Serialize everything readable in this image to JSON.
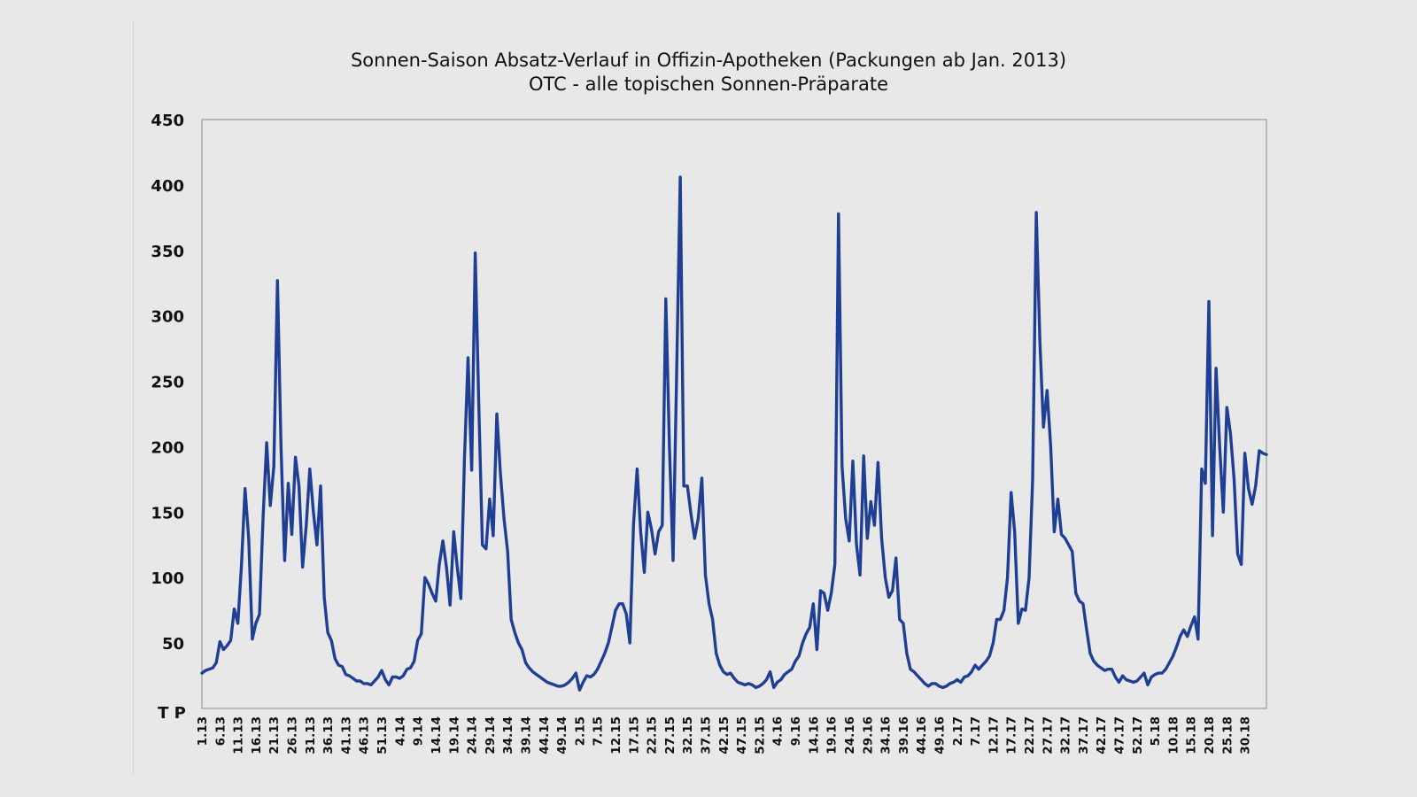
{
  "chart_data": {
    "type": "line",
    "title": "Sonnen-Saison Absatz-Verlauf in Offizin-Apotheken (Packungen ab Jan. 2013)",
    "subtitle": "OTC - alle topischen Sonnen-Präparate",
    "ylabel": "T P",
    "ylim": [
      0,
      450
    ],
    "yticks": [
      "50",
      "100",
      "150",
      "200",
      "250",
      "300",
      "350",
      "400",
      "450"
    ],
    "grid": false,
    "xticks": [
      "1.13",
      "6.13",
      "11.13",
      "16.13",
      "21.13",
      "26.13",
      "31.13",
      "36.13",
      "41.13",
      "46.13",
      "51.13",
      "4.14",
      "9.14",
      "14.14",
      "19.14",
      "24.14",
      "29.14",
      "34.14",
      "39.14",
      "44.14",
      "49.14",
      "2.15",
      "7.15",
      "12.15",
      "17.15",
      "22.15",
      "27.15",
      "32.15",
      "37.15",
      "42.15",
      "47.15",
      "52.15",
      "4.16",
      "9.16",
      "14.16",
      "19.16",
      "24.16",
      "29.16",
      "34.16",
      "39.16",
      "44.16",
      "49.16",
      "2.17",
      "7.17",
      "12.17",
      "17.17",
      "22.17",
      "27.17",
      "32.17",
      "37.17",
      "42.17",
      "47.17",
      "52.17",
      "5.18",
      "10.18",
      "15.18",
      "20.18",
      "25.18",
      "30.18"
    ],
    "series": [
      {
        "color": "#1f3f94",
        "points": [
          [
            0,
            27
          ],
          [
            1,
            29
          ],
          [
            2,
            30
          ],
          [
            3,
            31
          ],
          [
            4,
            35
          ],
          [
            5,
            51
          ],
          [
            6,
            45
          ],
          [
            7,
            48
          ],
          [
            8,
            52
          ],
          [
            9,
            76
          ],
          [
            10,
            65
          ],
          [
            11,
            110
          ],
          [
            12,
            168
          ],
          [
            13,
            130
          ],
          [
            14,
            53
          ],
          [
            15,
            65
          ],
          [
            16,
            72
          ],
          [
            17,
            145
          ],
          [
            18,
            203
          ],
          [
            19,
            155
          ],
          [
            20,
            185
          ],
          [
            21,
            327
          ],
          [
            22,
            200
          ],
          [
            23,
            113
          ],
          [
            24,
            172
          ],
          [
            25,
            133
          ],
          [
            26,
            192
          ],
          [
            27,
            170
          ],
          [
            28,
            108
          ],
          [
            29,
            140
          ],
          [
            30,
            183
          ],
          [
            31,
            150
          ],
          [
            32,
            125
          ],
          [
            33,
            170
          ],
          [
            34,
            85
          ],
          [
            35,
            58
          ],
          [
            36,
            52
          ],
          [
            37,
            38
          ],
          [
            38,
            33
          ],
          [
            39,
            32
          ],
          [
            40,
            26
          ],
          [
            41,
            25
          ],
          [
            42,
            23
          ],
          [
            43,
            21
          ],
          [
            44,
            21
          ],
          [
            45,
            19
          ],
          [
            46,
            19
          ],
          [
            47,
            18
          ],
          [
            48,
            21
          ],
          [
            49,
            24
          ],
          [
            50,
            29
          ],
          [
            51,
            22
          ],
          [
            52,
            18
          ],
          [
            53,
            24
          ],
          [
            54,
            24
          ],
          [
            55,
            23
          ],
          [
            56,
            25
          ],
          [
            57,
            30
          ],
          [
            58,
            31
          ],
          [
            59,
            36
          ],
          [
            60,
            52
          ],
          [
            61,
            57
          ],
          [
            62,
            100
          ],
          [
            63,
            95
          ],
          [
            64,
            88
          ],
          [
            65,
            82
          ],
          [
            66,
            110
          ],
          [
            67,
            128
          ],
          [
            68,
            108
          ],
          [
            69,
            79
          ],
          [
            70,
            135
          ],
          [
            71,
            108
          ],
          [
            72,
            84
          ],
          [
            73,
            190
          ],
          [
            74,
            268
          ],
          [
            75,
            182
          ],
          [
            76,
            348
          ],
          [
            77,
            230
          ],
          [
            78,
            125
          ],
          [
            79,
            122
          ],
          [
            80,
            160
          ],
          [
            81,
            132
          ],
          [
            82,
            225
          ],
          [
            83,
            180
          ],
          [
            84,
            145
          ],
          [
            85,
            120
          ],
          [
            86,
            68
          ],
          [
            87,
            58
          ],
          [
            88,
            50
          ],
          [
            89,
            45
          ],
          [
            90,
            35
          ],
          [
            91,
            31
          ],
          [
            92,
            28
          ],
          [
            93,
            26
          ],
          [
            94,
            24
          ],
          [
            95,
            22
          ],
          [
            96,
            20
          ],
          [
            97,
            19
          ],
          [
            98,
            18
          ],
          [
            99,
            17
          ],
          [
            100,
            17
          ],
          [
            101,
            18
          ],
          [
            102,
            20
          ],
          [
            103,
            23
          ],
          [
            104,
            27
          ],
          [
            105,
            14
          ],
          [
            106,
            20
          ],
          [
            107,
            25
          ],
          [
            108,
            24
          ],
          [
            109,
            26
          ],
          [
            110,
            30
          ],
          [
            111,
            36
          ],
          [
            112,
            42
          ],
          [
            113,
            50
          ],
          [
            114,
            62
          ],
          [
            115,
            75
          ],
          [
            116,
            80
          ],
          [
            117,
            80
          ],
          [
            118,
            72
          ],
          [
            119,
            50
          ],
          [
            120,
            140
          ],
          [
            121,
            183
          ],
          [
            122,
            135
          ],
          [
            123,
            104
          ],
          [
            124,
            150
          ],
          [
            125,
            137
          ],
          [
            126,
            118
          ],
          [
            127,
            135
          ],
          [
            128,
            140
          ],
          [
            129,
            313
          ],
          [
            130,
            200
          ],
          [
            131,
            113
          ],
          [
            132,
            255
          ],
          [
            133,
            406
          ],
          [
            134,
            170
          ],
          [
            135,
            170
          ],
          [
            136,
            148
          ],
          [
            137,
            130
          ],
          [
            138,
            145
          ],
          [
            139,
            176
          ],
          [
            140,
            102
          ],
          [
            141,
            80
          ],
          [
            142,
            68
          ],
          [
            143,
            42
          ],
          [
            144,
            33
          ],
          [
            145,
            28
          ],
          [
            146,
            26
          ],
          [
            147,
            27
          ],
          [
            148,
            23
          ],
          [
            149,
            20
          ],
          [
            150,
            19
          ],
          [
            151,
            18
          ],
          [
            152,
            19
          ],
          [
            153,
            18
          ],
          [
            154,
            16
          ],
          [
            155,
            17
          ],
          [
            156,
            19
          ],
          [
            157,
            22
          ],
          [
            158,
            28
          ],
          [
            159,
            16
          ],
          [
            160,
            20
          ],
          [
            161,
            22
          ],
          [
            162,
            26
          ],
          [
            163,
            28
          ],
          [
            164,
            30
          ],
          [
            165,
            36
          ],
          [
            166,
            40
          ],
          [
            167,
            50
          ],
          [
            168,
            57
          ],
          [
            169,
            62
          ],
          [
            170,
            80
          ],
          [
            171,
            45
          ],
          [
            172,
            90
          ],
          [
            173,
            88
          ],
          [
            174,
            75
          ],
          [
            175,
            88
          ],
          [
            176,
            110
          ],
          [
            177,
            378
          ],
          [
            178,
            185
          ],
          [
            179,
            145
          ],
          [
            180,
            128
          ],
          [
            181,
            189
          ],
          [
            182,
            125
          ],
          [
            183,
            102
          ],
          [
            184,
            193
          ],
          [
            185,
            130
          ],
          [
            186,
            158
          ],
          [
            187,
            140
          ],
          [
            188,
            188
          ],
          [
            189,
            130
          ],
          [
            190,
            100
          ],
          [
            191,
            85
          ],
          [
            192,
            90
          ],
          [
            193,
            115
          ],
          [
            194,
            68
          ],
          [
            195,
            65
          ],
          [
            196,
            42
          ],
          [
            197,
            30
          ],
          [
            198,
            28
          ],
          [
            199,
            25
          ],
          [
            200,
            22
          ],
          [
            201,
            19
          ],
          [
            202,
            17
          ],
          [
            203,
            19
          ],
          [
            204,
            19
          ],
          [
            205,
            17
          ],
          [
            206,
            16
          ],
          [
            207,
            17
          ],
          [
            208,
            19
          ],
          [
            209,
            20
          ],
          [
            210,
            22
          ],
          [
            211,
            20
          ],
          [
            212,
            24
          ],
          [
            213,
            25
          ],
          [
            214,
            28
          ],
          [
            215,
            33
          ],
          [
            216,
            30
          ],
          [
            217,
            33
          ],
          [
            218,
            36
          ],
          [
            219,
            40
          ],
          [
            220,
            50
          ],
          [
            221,
            68
          ],
          [
            222,
            68
          ],
          [
            223,
            75
          ],
          [
            224,
            100
          ],
          [
            225,
            165
          ],
          [
            226,
            135
          ],
          [
            227,
            65
          ],
          [
            228,
            76
          ],
          [
            229,
            75
          ],
          [
            230,
            100
          ],
          [
            231,
            175
          ],
          [
            232,
            379
          ],
          [
            233,
            280
          ],
          [
            234,
            215
          ],
          [
            235,
            243
          ],
          [
            236,
            200
          ],
          [
            237,
            135
          ],
          [
            238,
            160
          ],
          [
            239,
            133
          ],
          [
            240,
            130
          ],
          [
            241,
            125
          ],
          [
            242,
            120
          ],
          [
            243,
            88
          ],
          [
            244,
            82
          ],
          [
            245,
            80
          ],
          [
            246,
            60
          ],
          [
            247,
            42
          ],
          [
            248,
            36
          ],
          [
            249,
            33
          ],
          [
            250,
            31
          ],
          [
            251,
            29
          ],
          [
            252,
            30
          ],
          [
            253,
            30
          ],
          [
            254,
            24
          ],
          [
            255,
            20
          ],
          [
            256,
            25
          ],
          [
            257,
            22
          ],
          [
            258,
            21
          ],
          [
            259,
            20
          ],
          [
            260,
            21
          ],
          [
            261,
            24
          ],
          [
            262,
            27
          ],
          [
            263,
            18
          ],
          [
            264,
            24
          ],
          [
            265,
            26
          ],
          [
            266,
            27
          ],
          [
            267,
            27
          ],
          [
            268,
            30
          ],
          [
            269,
            35
          ],
          [
            270,
            40
          ],
          [
            271,
            47
          ],
          [
            272,
            55
          ],
          [
            273,
            60
          ],
          [
            274,
            55
          ],
          [
            275,
            63
          ],
          [
            276,
            70
          ],
          [
            277,
            53
          ],
          [
            278,
            183
          ],
          [
            279,
            172
          ],
          [
            280,
            311
          ],
          [
            281,
            132
          ],
          [
            282,
            260
          ],
          [
            283,
            200
          ],
          [
            284,
            150
          ],
          [
            285,
            230
          ],
          [
            286,
            210
          ],
          [
            287,
            175
          ],
          [
            288,
            118
          ],
          [
            289,
            110
          ],
          [
            290,
            195
          ],
          [
            291,
            168
          ],
          [
            292,
            156
          ],
          [
            293,
            170
          ],
          [
            294,
            197
          ],
          [
            295,
            195
          ],
          [
            296,
            194
          ]
        ]
      }
    ]
  }
}
